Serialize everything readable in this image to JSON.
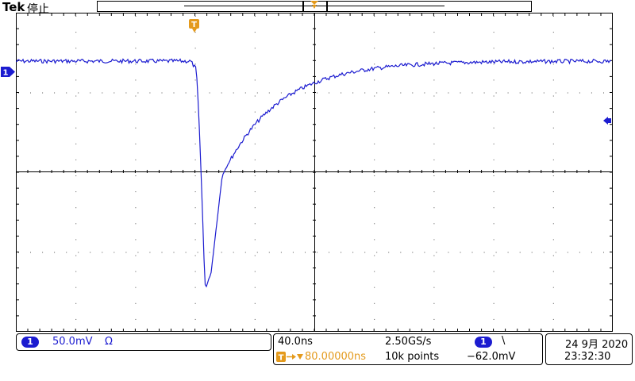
{
  "header": {
    "brand": "Tek",
    "state": "停止"
  },
  "channel": {
    "badge": "1",
    "scale": "50.0mV",
    "coupling": "Ω",
    "color": "#1c1cd0"
  },
  "acquisition": {
    "timebase": "40.0ns",
    "trigger_delay": "80.00000ns",
    "sample_rate": "2.50GS/s",
    "record_length": "10k points",
    "trigger_source": "1",
    "trigger_slope": "\\",
    "trigger_level": "−62.0mV",
    "trigger_color": "#e49a1c"
  },
  "datetime": {
    "date": "24 9月 2020",
    "time": "23:32:30"
  },
  "markers": {
    "ch_marker": "1",
    "trigger_marker": "T"
  },
  "waveform": {
    "color": "#1c1cd0"
  }
}
